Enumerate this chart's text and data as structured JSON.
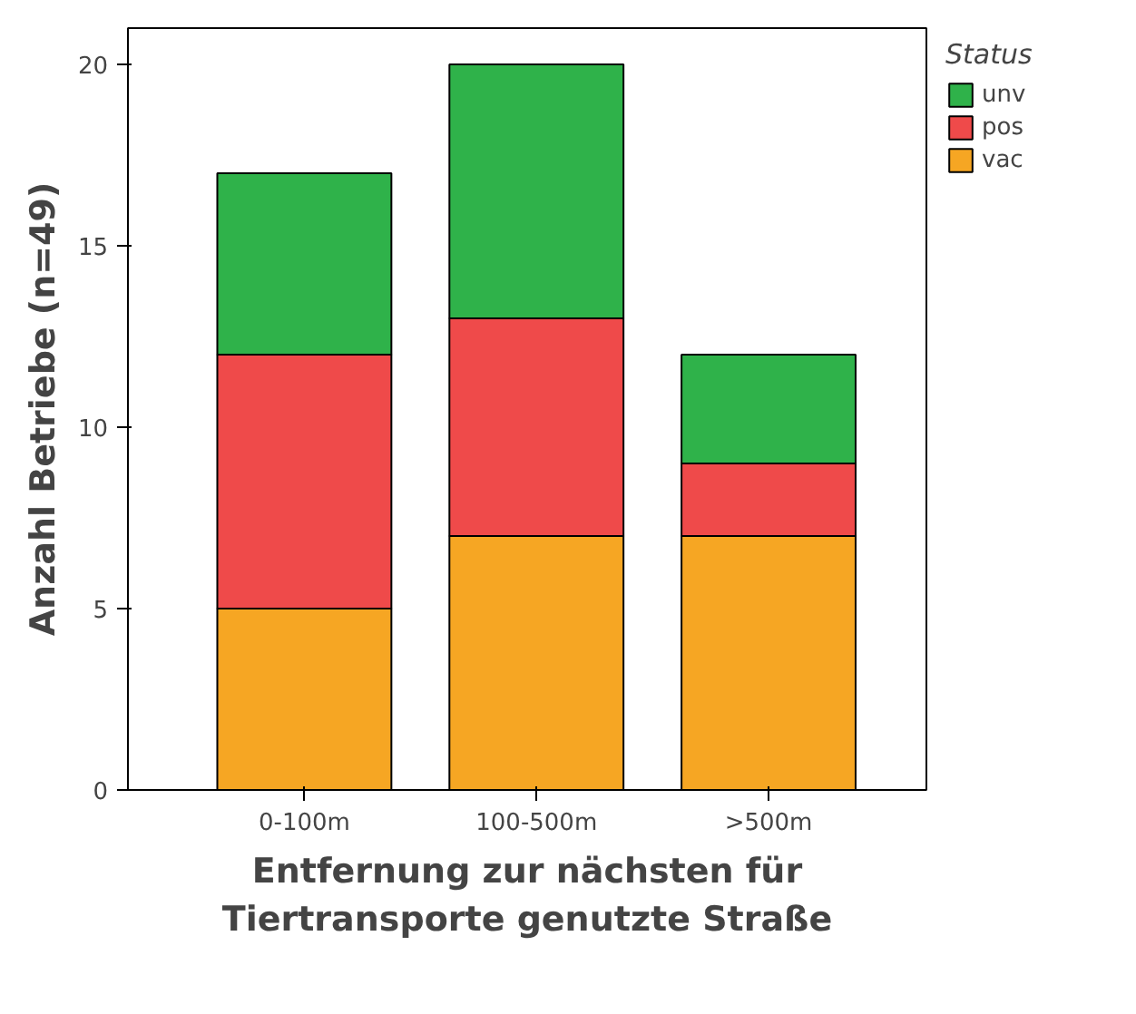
{
  "chart_data": {
    "type": "bar",
    "stacked": true,
    "xlabel": "Entfernung zur nächsten für\nTiertransporte genutzte Straße",
    "ylabel": "Anzahl Betriebe (n=49)",
    "legend_title": "Status",
    "legend": "right",
    "categories": [
      "0-100m",
      "100-500m",
      ">500m"
    ],
    "series": [
      {
        "name": "vac",
        "color": "#f6a623",
        "values": [
          5,
          7,
          7
        ]
      },
      {
        "name": "pos",
        "color": "#ef4a4a",
        "values": [
          7,
          6,
          2
        ]
      },
      {
        "name": "unv",
        "color": "#2fb24a",
        "values": [
          5,
          7,
          3
        ]
      }
    ],
    "ylim": [
      0,
      21
    ],
    "yticks": [
      0,
      5,
      10,
      15,
      20
    ],
    "grid": false
  }
}
